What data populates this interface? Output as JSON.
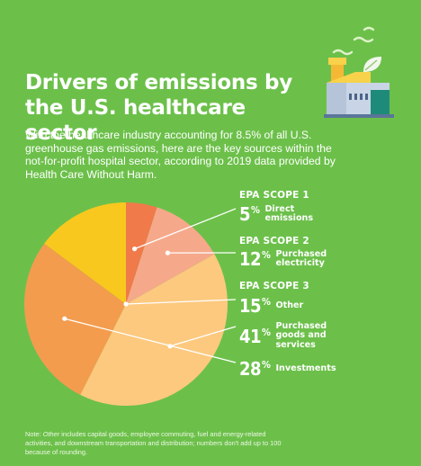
{
  "header": {
    "title": "Drivers of emissions by the U.S. healthcare sector",
    "intro": "With the healthcare industry accounting for 8.5% of all U.S. greenhouse gas emissions, here are the key sources within the not-for-profit hospital sector, according to 2019 data provided by Health Care Without Harm."
  },
  "scopes": {
    "scope1": "EPA SCOPE 1",
    "scope2": "EPA SCOPE 2",
    "scope3": "EPA SCOPE 3"
  },
  "labels": [
    {
      "pct": "5",
      "desc": "Direct emissions"
    },
    {
      "pct": "12",
      "desc": "Purchased electricity"
    },
    {
      "pct": "15",
      "desc": "Other"
    },
    {
      "pct": "41",
      "desc": "Purchased goods and services"
    },
    {
      "pct": "28",
      "desc": "Investments"
    }
  ],
  "percent_sign": "%",
  "note": {
    "prefix": "Note: ",
    "italic": "Other",
    "body": " includes capital goods, employee commuting, fuel and energy-related activities, and downstream transportation and distribution; numbers don't add up to 100 because of rounding."
  },
  "icon": "factory-icon",
  "colors": {
    "background": "#6cc04a",
    "slices": [
      "#f07a4a",
      "#f5a98a",
      "#fcc97f",
      "#f39c4e",
      "#f8c81e"
    ]
  },
  "chart_data": {
    "type": "pie",
    "slices": [
      {
        "label": "Direct emissions",
        "value": 5,
        "scope": "EPA SCOPE 1"
      },
      {
        "label": "Purchased electricity",
        "value": 12,
        "scope": "EPA SCOPE 2"
      },
      {
        "label": "Purchased goods and services",
        "value": 41,
        "scope": "EPA SCOPE 3"
      },
      {
        "label": "Investments",
        "value": 28,
        "scope": "EPA SCOPE 3"
      },
      {
        "label": "Other",
        "value": 15,
        "scope": "EPA SCOPE 3"
      }
    ],
    "start": "12 o'clock",
    "direction": "clockwise"
  }
}
